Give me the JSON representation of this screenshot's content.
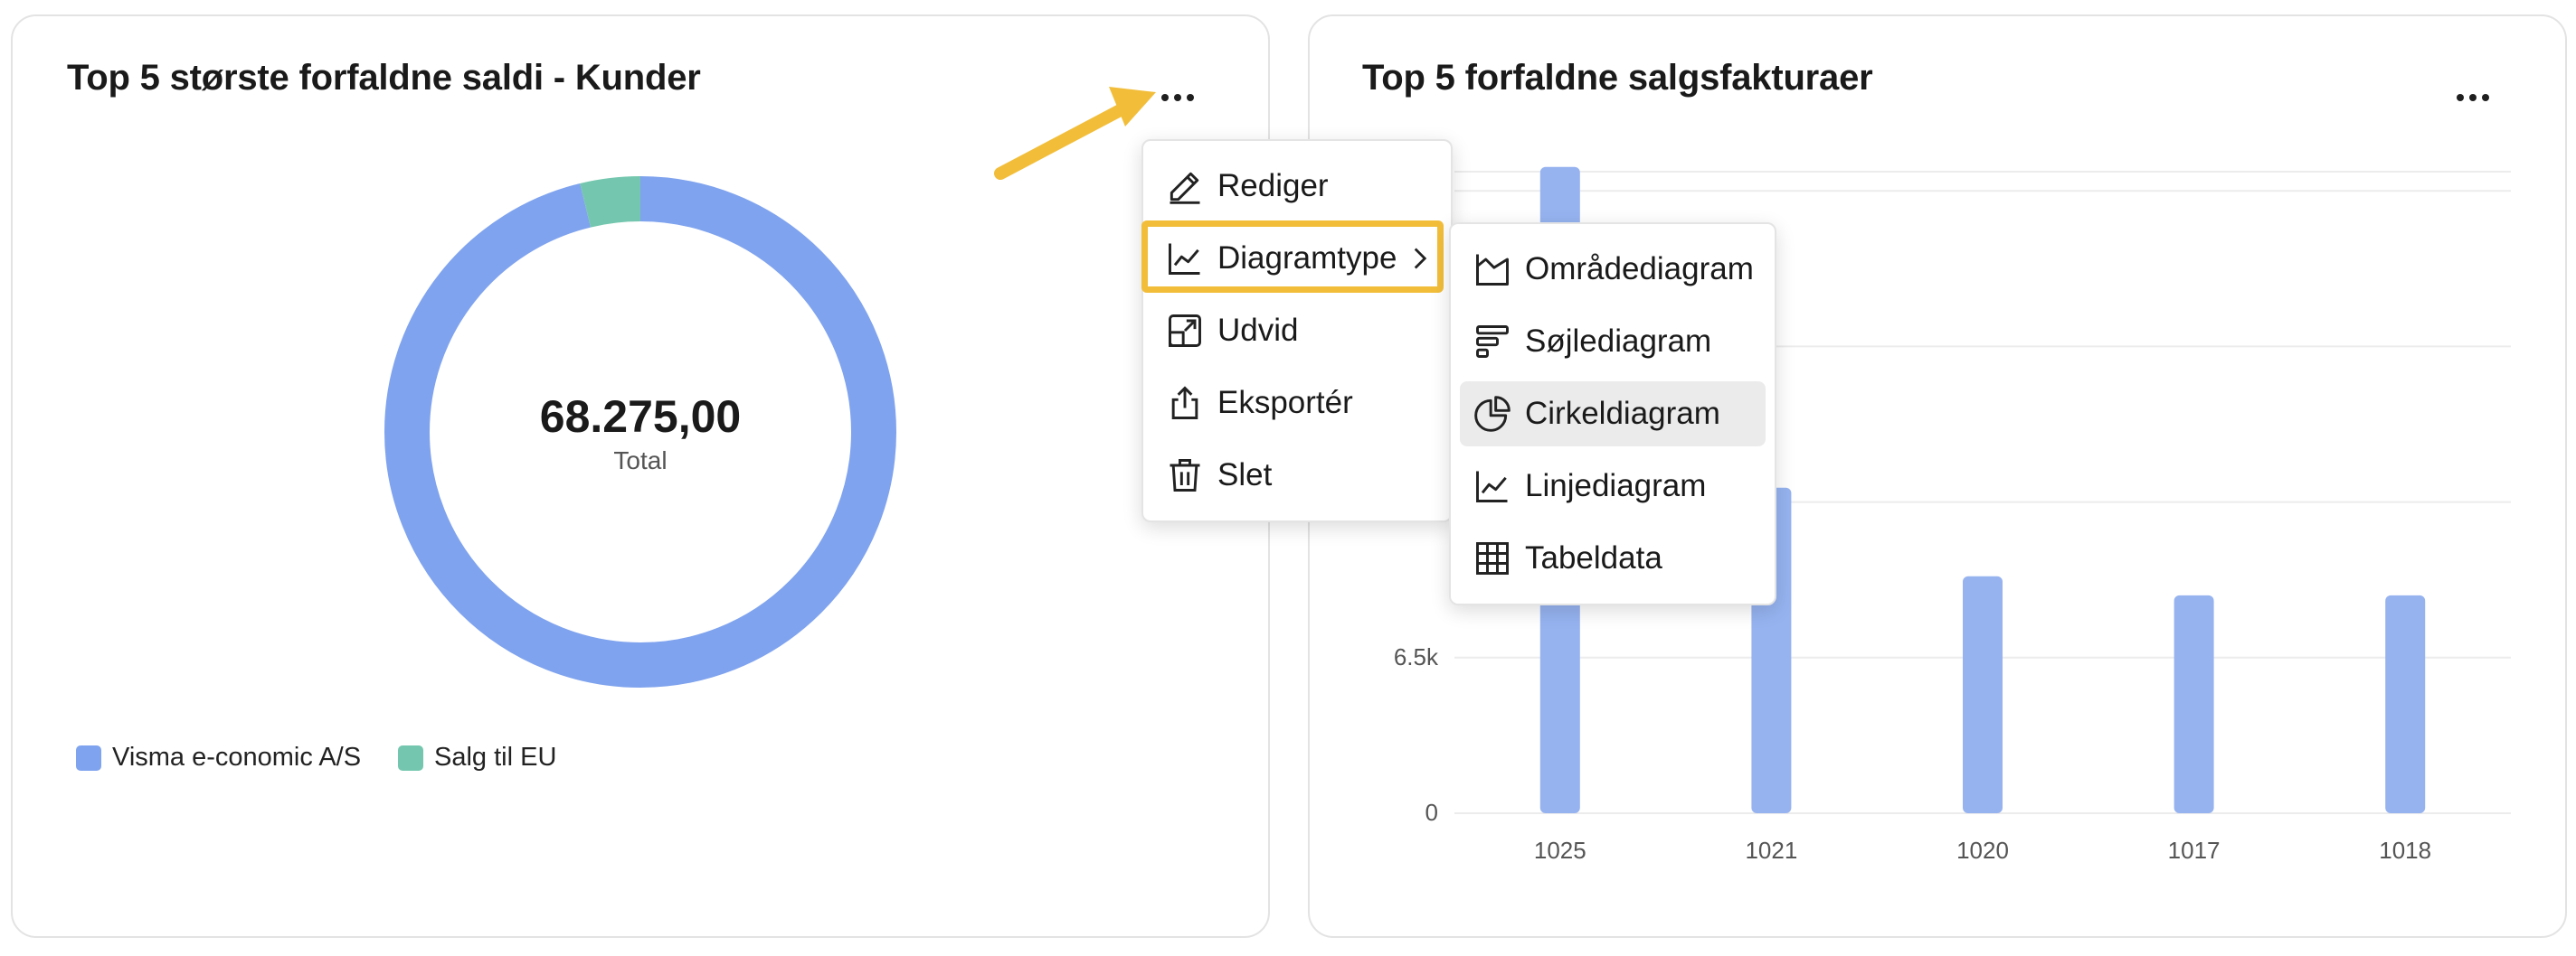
{
  "left_card": {
    "title": "Top 5 største forfaldne saldi - Kunder",
    "more_icon": "more-horizontal-icon",
    "center_value": "68.275,00",
    "center_label": "Total",
    "legend": [
      {
        "label": "Visma e-conomic A/S",
        "color": "#7fa3ee"
      },
      {
        "label": "Salg til EU",
        "color": "#74c7ae"
      }
    ]
  },
  "right_card": {
    "title": "Top 5 forfaldne salgsfakturaer",
    "more_icon": "more-horizontal-icon"
  },
  "context_menu": {
    "items": [
      {
        "label": "Rediger",
        "icon": "pencil-icon"
      },
      {
        "label": "Diagramtype",
        "icon": "line-chart-icon",
        "has_submenu": true,
        "highlighted": true
      },
      {
        "label": "Udvid",
        "icon": "expand-icon"
      },
      {
        "label": "Eksportér",
        "icon": "share-icon"
      },
      {
        "label": "Slet",
        "icon": "trash-icon"
      }
    ]
  },
  "submenu": {
    "items": [
      {
        "label": "Områdediagram",
        "icon": "area-chart-icon"
      },
      {
        "label": "Søjlediagram",
        "icon": "bar-chart-icon"
      },
      {
        "label": "Cirkeldiagram",
        "icon": "pie-chart-icon",
        "hovered": true
      },
      {
        "label": "Linjediagram",
        "icon": "line-chart-icon"
      },
      {
        "label": "Tabeldata",
        "icon": "table-icon"
      }
    ]
  },
  "annotation": {
    "arrow_color": "#f2be3a",
    "highlight_color": "#f2be3a"
  },
  "chart_data": [
    {
      "type": "pie",
      "title": "Top 5 største forfaldne saldi - Kunder",
      "donut": true,
      "labels": [
        "Visma e-conomic A/S",
        "Salg til EU"
      ],
      "values": [
        0.962,
        0.038
      ],
      "colors": [
        "#7fa3ee",
        "#74c7ae"
      ],
      "center_text": "68.275,00",
      "legend_position": "bottom-left"
    },
    {
      "type": "bar",
      "title": "Top 5 forfaldne salgsfakturaer",
      "categories": [
        "1025",
        "1021",
        "1020",
        "1017",
        "1018"
      ],
      "values": [
        27000,
        13600,
        9900,
        9100,
        9100
      ],
      "yticks": [
        {
          "value": 0,
          "label": "0"
        },
        {
          "value": 6500,
          "label": "6.5k"
        }
      ],
      "ylim": [
        0,
        26800
      ],
      "color": "#96b3f0",
      "grid": true
    }
  ]
}
